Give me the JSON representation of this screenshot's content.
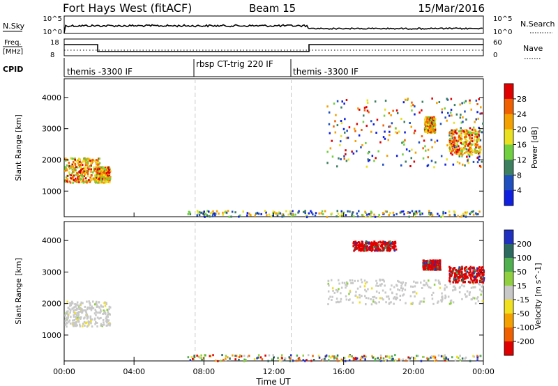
{
  "header": {
    "title": "Fort Hays West (fitACF)",
    "beam": "Beam 15",
    "date": "15/Mar/2016"
  },
  "panels": {
    "nsky": {
      "label": "N.Sky",
      "right_label": "N.Search",
      "ticks_left": [
        "10^5",
        "10^0"
      ],
      "ticks_right": [
        "10^5",
        "10^0"
      ]
    },
    "freq": {
      "label_top": "Freq.",
      "label_bottom": "[MHz]",
      "right_label": "Nave",
      "ticks_left": [
        "18",
        "8"
      ],
      "ticks_right": [
        "60",
        "0"
      ]
    },
    "cpid": {
      "label": "CPID",
      "segments": [
        {
          "start": 0,
          "end": 7.5,
          "label": "themis -3300 IF"
        },
        {
          "start": 7.5,
          "end": 13.0,
          "label": "rbsp CT-trig 220 IF"
        },
        {
          "start": 13.0,
          "end": 24.0,
          "label": "themis -3300 IF"
        }
      ]
    }
  },
  "x_axis": {
    "label": "Time UT",
    "ticks": [
      "00:00",
      "04:00",
      "08:00",
      "12:00",
      "16:00",
      "20:00",
      "00:00"
    ]
  },
  "chart_data": [
    {
      "type": "heatmap",
      "title": "Power",
      "ylabel": "Slant Range [km]",
      "ylim": [
        180,
        4600
      ],
      "xlim": [
        0,
        24
      ],
      "yticks": [
        1000,
        2000,
        3000,
        4000
      ],
      "colorbar": {
        "label": "Power [dB]",
        "ticks": [
          "28",
          "24",
          "20",
          "16",
          "12",
          "8",
          "4"
        ],
        "colors": [
          "#e00000",
          "#f06000",
          "#f4a000",
          "#e8e020",
          "#70d040",
          "#3c8060",
          "#2050c0",
          "#1020e0"
        ]
      },
      "clusters": [
        {
          "t0": 0.0,
          "t1": 2.0,
          "r0": 1300,
          "r1": 2100,
          "level": "high"
        },
        {
          "t0": 1.8,
          "t1": 2.6,
          "r0": 1300,
          "r1": 1800,
          "level": "high"
        },
        {
          "t0": 15.0,
          "t1": 24.0,
          "r0": 1800,
          "r1": 4000,
          "level": "mixed"
        },
        {
          "t0": 20.6,
          "t1": 21.2,
          "r0": 2900,
          "r1": 3400,
          "level": "high"
        },
        {
          "t0": 22.0,
          "t1": 23.8,
          "r0": 2200,
          "r1": 3000,
          "level": "high"
        },
        {
          "t0": 7.0,
          "t1": 24.0,
          "r0": 200,
          "r1": 400,
          "level": "low"
        }
      ]
    },
    {
      "type": "heatmap",
      "title": "Velocity",
      "ylabel": "Slant Range [km]",
      "ylim": [
        180,
        4600
      ],
      "xlim": [
        0,
        24
      ],
      "yticks": [
        1000,
        2000,
        3000,
        4000
      ],
      "colorbar": {
        "label": "Velocity [m s^-1]",
        "ticks": [
          "200",
          "100",
          "50",
          "15",
          "-15",
          "-50",
          "-100",
          "-200"
        ],
        "colors": [
          "#2030c0",
          "#2c6a60",
          "#50b050",
          "#90d040",
          "#c8c8c8",
          "#f0e020",
          "#f4a000",
          "#f06000",
          "#e00000"
        ]
      },
      "clusters": [
        {
          "t0": 0.0,
          "t1": 2.6,
          "r0": 1300,
          "r1": 2100,
          "level": "ground"
        },
        {
          "t0": 15.0,
          "t1": 24.0,
          "r0": 2000,
          "r1": 2800,
          "level": "ground"
        },
        {
          "t0": 16.5,
          "t1": 19.0,
          "r0": 3700,
          "r1": 4000,
          "level": "negative"
        },
        {
          "t0": 20.5,
          "t1": 21.5,
          "r0": 3100,
          "r1": 3400,
          "level": "negative"
        },
        {
          "t0": 22.0,
          "t1": 24.0,
          "r0": 2700,
          "r1": 3200,
          "level": "negative"
        },
        {
          "t0": 7.0,
          "t1": 24.0,
          "r0": 200,
          "r1": 400,
          "level": "mixed"
        }
      ]
    }
  ]
}
